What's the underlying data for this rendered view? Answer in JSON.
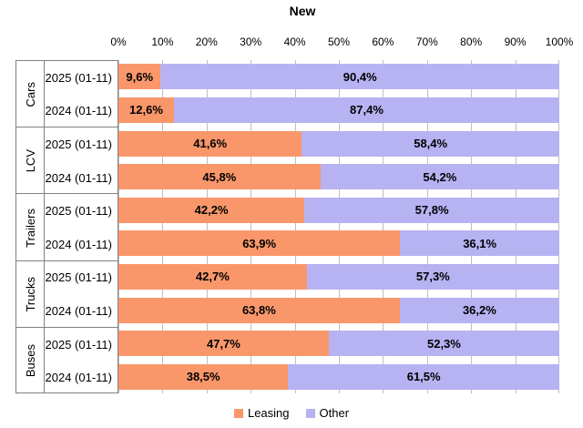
{
  "title": "New",
  "value_axis": {
    "tick_labels": [
      "0%",
      "10%",
      "20%",
      "30%",
      "40%",
      "50%",
      "60%",
      "70%",
      "80%",
      "90%",
      "100%"
    ]
  },
  "legend": {
    "items": [
      {
        "label": "Leasing",
        "color": "#f9976b"
      },
      {
        "label": "Other",
        "color": "#b7b2f2"
      }
    ]
  },
  "colors": {
    "leasing": "#f9976b",
    "other": "#b7b2f2",
    "gridline": "#bfbfbf",
    "table_border": "#808080"
  },
  "chart_data": {
    "type": "bar",
    "orientation": "horizontal",
    "stacked": true,
    "unit": "%",
    "xlim": [
      0,
      100
    ],
    "grid": true,
    "legend_position": "bottom",
    "title": "New",
    "series_names": [
      "Leasing",
      "Other"
    ],
    "groups": [
      "Cars",
      "LCV",
      "Trailers",
      "Trucks",
      "Buses"
    ],
    "rows": [
      {
        "group": "Cars",
        "period": "2025 (01-11)",
        "leasing": 9.6,
        "other": 90.4,
        "leasing_label": "9,6%",
        "other_label": "90,4%"
      },
      {
        "group": "Cars",
        "period": "2024 (01-11)",
        "leasing": 12.6,
        "other": 87.4,
        "leasing_label": "12,6%",
        "other_label": "87,4%"
      },
      {
        "group": "LCV",
        "period": "2025 (01-11)",
        "leasing": 41.6,
        "other": 58.4,
        "leasing_label": "41,6%",
        "other_label": "58,4%"
      },
      {
        "group": "LCV",
        "period": "2024 (01-11)",
        "leasing": 45.8,
        "other": 54.2,
        "leasing_label": "45,8%",
        "other_label": "54,2%"
      },
      {
        "group": "Trailers",
        "period": "2025 (01-11)",
        "leasing": 42.2,
        "other": 57.8,
        "leasing_label": "42,2%",
        "other_label": "57,8%"
      },
      {
        "group": "Trailers",
        "period": "2024 (01-11)",
        "leasing": 63.9,
        "other": 36.1,
        "leasing_label": "63,9%",
        "other_label": "36,1%"
      },
      {
        "group": "Trucks",
        "period": "2025 (01-11)",
        "leasing": 42.7,
        "other": 57.3,
        "leasing_label": "42,7%",
        "other_label": "57,3%"
      },
      {
        "group": "Trucks",
        "period": "2024 (01-11)",
        "leasing": 63.8,
        "other": 36.2,
        "leasing_label": "63,8%",
        "other_label": "36,2%"
      },
      {
        "group": "Buses",
        "period": "2025 (01-11)",
        "leasing": 47.7,
        "other": 52.3,
        "leasing_label": "47,7%",
        "other_label": "52,3%"
      },
      {
        "group": "Buses",
        "period": "2024 (01-11)",
        "leasing": 38.5,
        "other": 61.5,
        "leasing_label": "38,5%",
        "other_label": "61,5%"
      }
    ]
  }
}
